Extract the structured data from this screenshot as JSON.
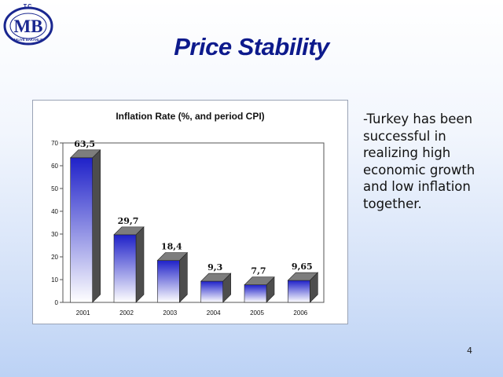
{
  "slide": {
    "title": "Price Stability",
    "bullet_text": "-Turkey has been successful in realizing high economic growth and low inflation together.",
    "page_number": "4"
  },
  "logo": {
    "top_text": "T.C.",
    "initials": "MB",
    "ring_text": "MALIYE BAKANLIGI"
  },
  "colors": {
    "title": "#0d1a8c",
    "bar_top": "#1f21c9",
    "bar_bottom": "#ffffff",
    "logo_blue": "#1a2790"
  },
  "chart_data": {
    "type": "bar",
    "title": "Inflation Rate (%, and period CPI)",
    "categories": [
      "2001",
      "2002",
      "2003",
      "2004",
      "2005",
      "2006"
    ],
    "values": [
      63.5,
      29.7,
      18.4,
      9.3,
      7.7,
      9.65
    ],
    "data_labels": [
      "63,5",
      "29,7",
      "18,4",
      "9,3",
      "7,7",
      "9,65"
    ],
    "ylim": [
      0,
      70
    ],
    "yticks": [
      "0",
      "10",
      "20",
      "30",
      "40",
      "50",
      "60",
      "70"
    ],
    "grid": false,
    "legend": "none"
  }
}
